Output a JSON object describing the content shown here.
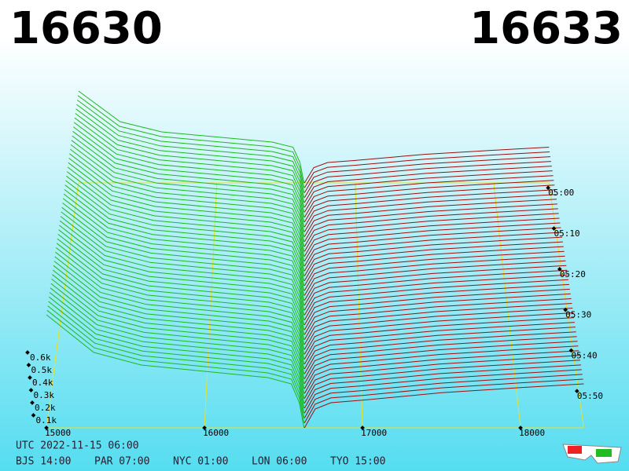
{
  "chart_data": {
    "type": "depth3d",
    "bid_price": "16630",
    "ask_price": "16633",
    "bid_color": "#1fb81f",
    "ask_color": "#9a0f0f",
    "bids": {
      "prices": [
        16630,
        16600,
        16550,
        16400,
        16000,
        15600,
        15300,
        15100,
        15000
      ],
      "volumes": [
        0,
        0.2,
        0.35,
        0.4,
        0.45,
        0.5,
        0.6,
        0.8,
        0.9
      ]
    },
    "asks": {
      "prices": [
        16633,
        16700,
        16800,
        17000,
        17500,
        18000,
        18400
      ],
      "volumes": [
        0,
        0.15,
        0.2,
        0.22,
        0.28,
        0.32,
        0.35
      ]
    },
    "xlim": [
      15000,
      18400
    ],
    "xticks": [
      15000,
      16000,
      17000,
      18000
    ],
    "zticks": [
      {
        "value": 0.1,
        "label": "0.1k"
      },
      {
        "value": 0.2,
        "label": "0.2k"
      },
      {
        "value": 0.3,
        "label": "0.3k"
      },
      {
        "value": 0.4,
        "label": "0.4k"
      },
      {
        "value": 0.5,
        "label": "0.5k"
      },
      {
        "value": 0.6,
        "label": "0.6k"
      }
    ],
    "time_ticks": [
      "05:00",
      "05:10",
      "05:20",
      "05:30",
      "05:40",
      "05:50"
    ],
    "utc_time": "UTC 2022-11-15 06:00",
    "city_times": [
      "BJS 14:00",
      "PAR 07:00",
      "NYC 01:00",
      "LON 06:00",
      "TYO 15:00"
    ]
  }
}
